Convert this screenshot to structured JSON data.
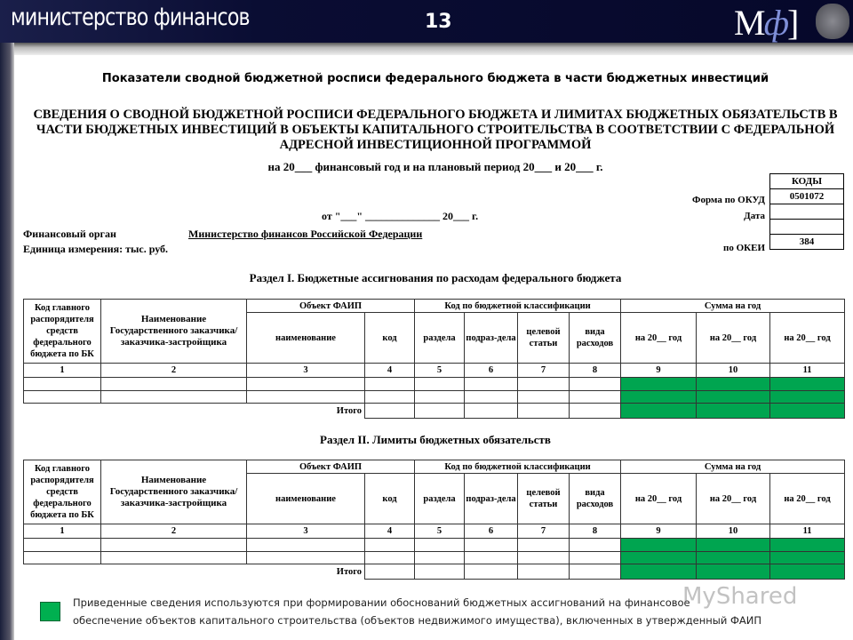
{
  "header": {
    "logo_text": "министерство финансов",
    "page_number": "13",
    "mf_logo_letter": "М",
    "mf_logo_phi": "ф"
  },
  "title": "Показатели сводной бюджетной росписи федерального бюджета в части бюджетных инвестиций",
  "heading": "СВЕДЕНИЯ О СВОДНОЙ БЮДЖЕТНОЙ РОСПИСИ ФЕДЕРАЛЬНОГО БЮДЖЕТА И ЛИМИТАХ БЮДЖЕТНЫХ ОБЯЗАТЕЛЬСТВ В ЧАСТИ БЮДЖЕТНЫХ ИНВЕСТИЦИЙ В ОБЪЕКТЫ КАПИТАЛЬНОГО СТРОИТЕЛЬСТВА В СООТВЕТСТВИИ С ФЕДЕРАЛЬНОЙ АДРЕСНОЙ ИНВЕСТИЦИОННОЙ ПРОГРАММОЙ",
  "subheading": "на 20___ финансовый год и на плановый период 20___ и 20___ г.",
  "date_line": "от \"___\" ______________ 20___ г.",
  "codes": {
    "header": "КОДЫ",
    "okud_label": "Форма по ОКУД",
    "okud": "0501072",
    "date_label": "Дата",
    "date": "",
    "blank": "",
    "okei_label": "по ОКЕИ",
    "okei": "384"
  },
  "fin_organ_label": "Финансовый орган",
  "fin_organ": "Министерство финансов Российской Федерации",
  "unit": "Единица измерения: тыс. руб.",
  "table_headers": {
    "c1": "Код главного распорядителя средств федерального бюджета по БК",
    "c2": "Наименование Государственного заказчика/заказчика-застройщика",
    "faip": "Объект ФАИП",
    "kbk": "Код по бюджетной классификации",
    "sum": "Сумма на год",
    "name": "наименование",
    "code": "код",
    "razdel": "раздела",
    "podrazdel": "подраз-дела",
    "celevoy": "целевой статьи",
    "vida": "вида расходов",
    "y1": "на 20__ год",
    "y2": "на 20__ год",
    "y3": "на 20__ год",
    "numbers": [
      "1",
      "2",
      "3",
      "4",
      "5",
      "6",
      "7",
      "8",
      "9",
      "10",
      "11"
    ],
    "total": "Итого"
  },
  "section1": "Раздел I. Бюджетные ассигнования по расходам федерального бюджета",
  "section2": "Раздел II. Лимиты бюджетных обязательств",
  "legend_color": "#00b050",
  "note": [
    "Приведенные сведения используются при формировании обоснований бюджетных ассигнований на финансовое",
    "обеспечение объектов капитального строительства (объектов недвижимого имущества), включенных в утвержденный ФАИП"
  ],
  "watermark": "MyShared"
}
